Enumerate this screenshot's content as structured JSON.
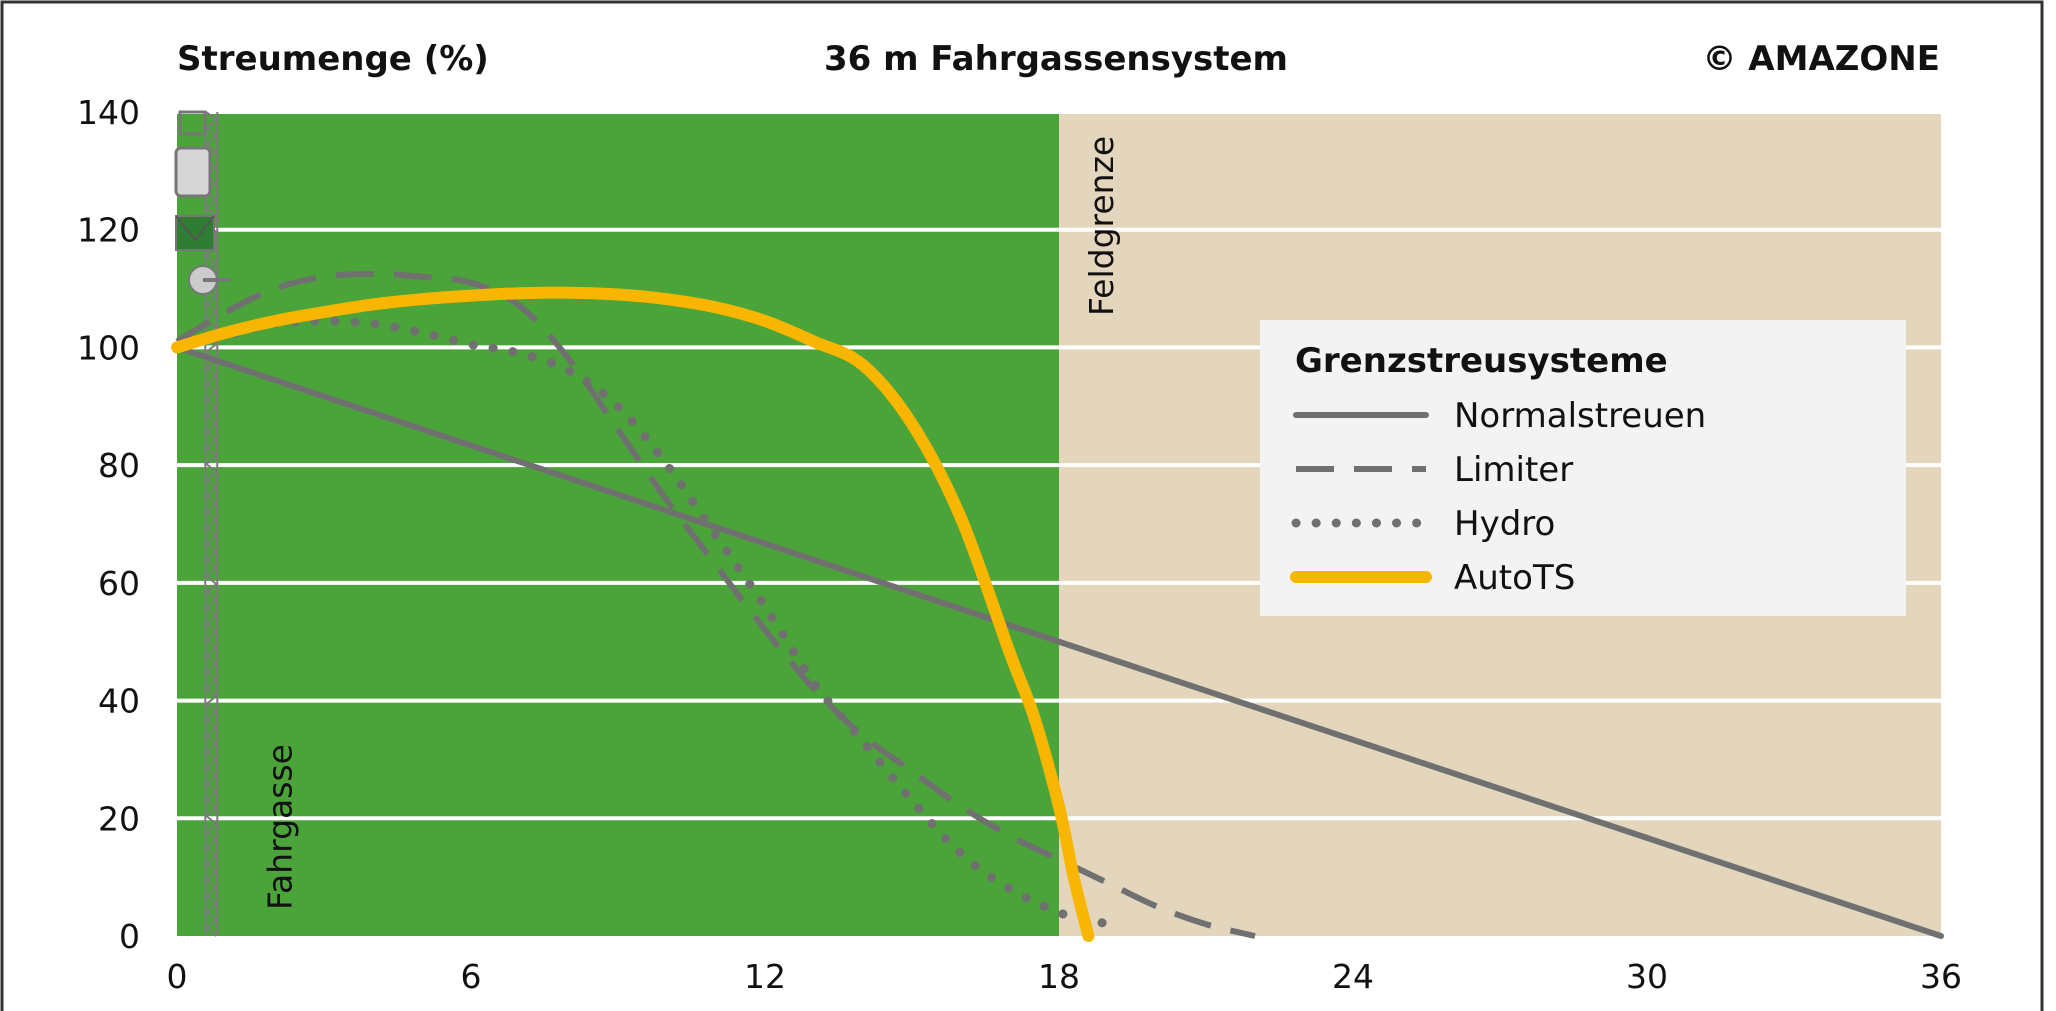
{
  "header": {
    "ylabel": "Streumenge (%)",
    "title": "36 m Fahrgassensystem",
    "copyright": "© AMAZONE"
  },
  "chart_data": {
    "type": "line",
    "title": "36 m Fahrgassensystem",
    "xlabel": "",
    "ylabel": "Streumenge (%)",
    "xlim": [
      0,
      36
    ],
    "ylim": [
      0,
      140
    ],
    "x_ticks": [
      "0",
      "6",
      "12",
      "18",
      "24",
      "30",
      "36"
    ],
    "y_ticks": [
      "0",
      "20",
      "40",
      "60",
      "80",
      "100",
      "120",
      "140"
    ],
    "grid": "horizontal",
    "legend_position": "right",
    "legend_title": "Grenzstreusysteme",
    "regions": [
      {
        "from": 0,
        "to": 18,
        "color": "#4ba43a"
      },
      {
        "from": 18,
        "to": 36,
        "color": "#e3d6bc"
      }
    ],
    "annotations": {
      "field_boundary_x": 18,
      "field_boundary_label": "Feldgrenze",
      "tramline_x": 0.7,
      "tramline_label": "Fahrgasse"
    },
    "series": [
      {
        "name": "Normalstreuen",
        "style": "solid",
        "color": "#707070",
        "x": [
          0,
          36
        ],
        "y": [
          100,
          0
        ]
      },
      {
        "name": "Limiter",
        "style": "dashed",
        "color": "#707070",
        "x": [
          0,
          1,
          2,
          3,
          4,
          5,
          6,
          7,
          8,
          9,
          10,
          11,
          12,
          13,
          14,
          15,
          16,
          17,
          18,
          19,
          20,
          21,
          22
        ],
        "y": [
          101,
          106,
          110,
          112,
          112.5,
          112,
          111,
          107,
          98,
          86,
          74,
          63,
          52,
          42,
          34,
          28,
          22,
          17,
          13,
          9,
          5,
          2,
          0
        ]
      },
      {
        "name": "Hydro",
        "style": "dotted",
        "color": "#707070",
        "x": [
          0,
          1,
          2,
          3,
          4,
          5,
          6,
          7,
          8,
          9,
          10,
          11,
          12,
          13,
          14,
          15,
          16,
          17,
          18,
          18.5,
          19
        ],
        "y": [
          100,
          102,
          104,
          104.5,
          104,
          102.5,
          100.5,
          99,
          96,
          90,
          80,
          68,
          56,
          43,
          33,
          23,
          14,
          8,
          4,
          3,
          2
        ]
      },
      {
        "name": "AutoTS",
        "style": "solid",
        "color": "#f9b600",
        "x": [
          0,
          1,
          2,
          3,
          4,
          5,
          6,
          7,
          8,
          9,
          10,
          11,
          12,
          13,
          14,
          15,
          16,
          17,
          17.5,
          18,
          18.3,
          18.6
        ],
        "y": [
          100,
          102.5,
          104.5,
          106,
          107.3,
          108.2,
          108.8,
          109.2,
          109.3,
          109,
          108.2,
          106.8,
          104.5,
          101,
          97,
          87,
          71,
          48,
          37,
          22,
          10,
          0
        ]
      }
    ]
  }
}
